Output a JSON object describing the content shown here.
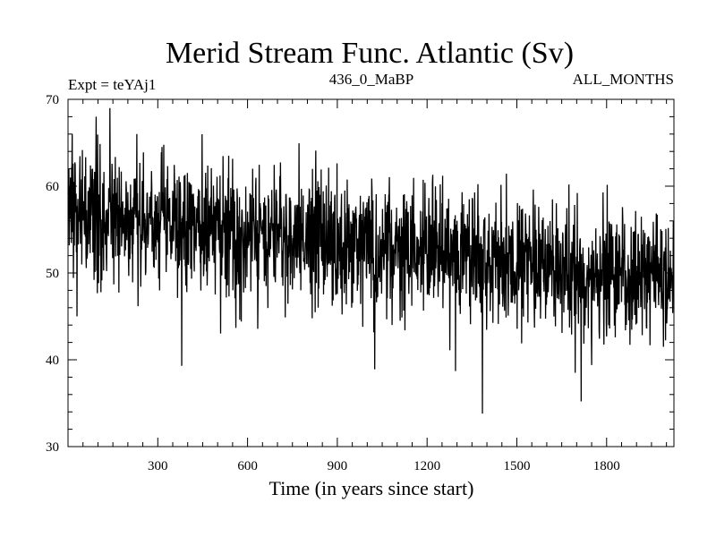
{
  "chart_data": {
    "type": "line",
    "title": "Merid Stream Func. Atlantic (Sv)",
    "experiment": "Expt = teYAj1",
    "period": "436_0_MaBP",
    "months": "ALL_MONTHS",
    "xlabel": "Time (in years since start)",
    "ylabel": "",
    "xlim": [
      0,
      2025
    ],
    "ylim": [
      30,
      70
    ],
    "xticks": [
      300,
      600,
      900,
      1200,
      1500,
      1800
    ],
    "yticks": [
      30,
      40,
      50,
      60,
      70
    ],
    "xtick_labels": [
      "300",
      "600",
      "900",
      "1200",
      "1500",
      "1800"
    ],
    "ytick_labels": [
      "30",
      "40",
      "50",
      "60",
      "70"
    ],
    "series": [
      {
        "name": "Merid Stream Func. Atlantic",
        "n_points": 2025,
        "trend_start": 57,
        "trend_end": 49,
        "noise_sd": 3.6,
        "seed": 436,
        "spikes": [
          {
            "x": 14,
            "y": 66
          },
          {
            "x": 30,
            "y": 45
          },
          {
            "x": 140,
            "y": 69
          },
          {
            "x": 230,
            "y": 66
          },
          {
            "x": 380,
            "y": 39.3
          },
          {
            "x": 1025,
            "y": 38.9
          },
          {
            "x": 1295,
            "y": 38.7
          },
          {
            "x": 1385,
            "y": 33.8
          },
          {
            "x": 1695,
            "y": 38.5
          },
          {
            "x": 1715,
            "y": 35.2
          },
          {
            "x": 1990,
            "y": 41.5
          }
        ]
      }
    ]
  }
}
